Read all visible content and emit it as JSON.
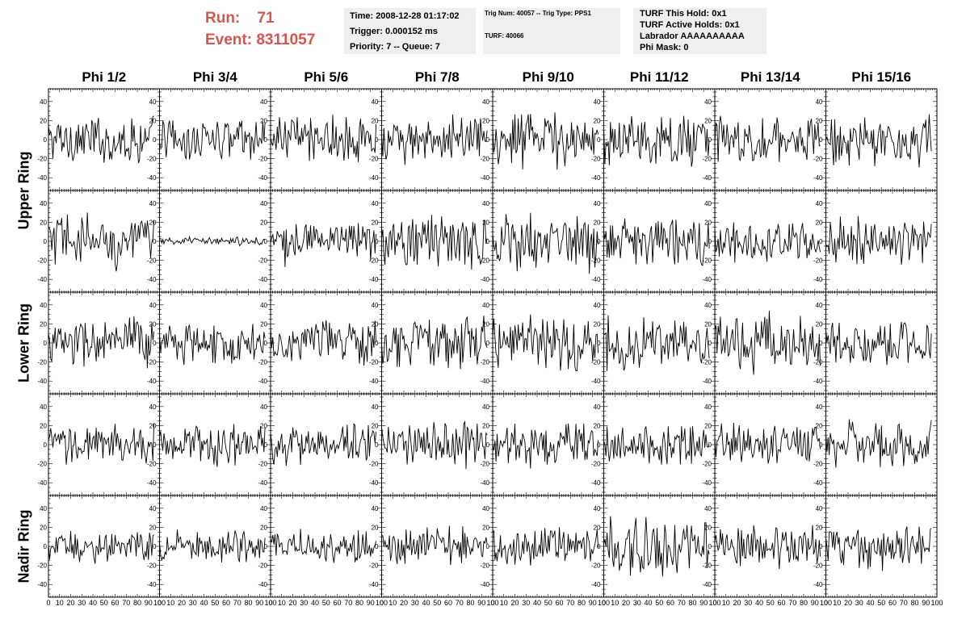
{
  "header": {
    "run_label": "Run:",
    "run_value": "71",
    "event_label": "Event:",
    "event_value": "8311057",
    "time": "Time: 2008-12-28 01:17:02",
    "trigger": "Trigger: 0.000152 ms",
    "priority": "Priority: 7 -- Queue: 7",
    "trig_num": "Trig Num: 40057 -- Trig Type: PPS1",
    "turf": "TURF: 40066",
    "turf_this_hold": "TURF This Hold: 0x1",
    "turf_active_holds": "TURF Active Holds: 0x1",
    "labrador": "Labrador AAAAAAAAAA",
    "phi_mask": "Phi Mask: 0"
  },
  "colors": {
    "run_event": "#d9534f",
    "info_bg": "#efefef",
    "trace": "#000000"
  },
  "chart_data": {
    "type": "line",
    "columns": [
      "Phi 1/2",
      "Phi 3/4",
      "Phi 5/6",
      "Phi 7/8",
      "Phi 9/10",
      "Phi 11/12",
      "Phi 13/14",
      "Phi 15/16"
    ],
    "rows": [
      "Upper Ring",
      "",
      "Lower Ring",
      "",
      "Nadir Ring"
    ],
    "xlim": [
      0,
      100
    ],
    "ylim": [
      -50,
      50
    ],
    "x_ticks": [
      "0",
      "10",
      "20",
      "30",
      "40",
      "50",
      "60",
      "70",
      "80",
      "90",
      "100"
    ],
    "y_ticks": [
      "-40",
      "-20",
      "0",
      "20",
      "40"
    ],
    "samples_per_trace": 96,
    "trace_amplitude": [
      [
        18,
        16,
        20,
        18,
        22,
        18,
        18,
        20
      ],
      [
        22,
        3,
        18,
        22,
        22,
        18,
        16,
        18
      ],
      [
        20,
        16,
        18,
        20,
        20,
        20,
        22,
        16
      ],
      [
        16,
        16,
        16,
        18,
        16,
        16,
        16,
        18
      ],
      [
        12,
        12,
        12,
        14,
        14,
        22,
        16,
        18
      ]
    ]
  }
}
